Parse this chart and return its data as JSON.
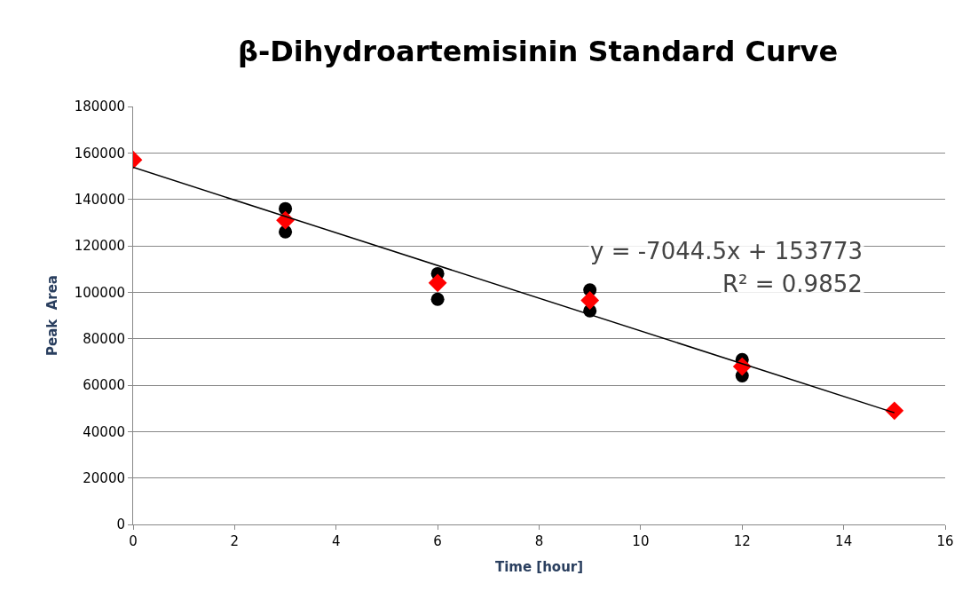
{
  "chart_data": {
    "type": "scatter",
    "title": "β-Dihydroartemisinin Standard Curve",
    "xlabel": "Time [hour]",
    "ylabel": "Peak  Area",
    "xlim": [
      0,
      16
    ],
    "xticks": [
      0,
      2,
      4,
      6,
      8,
      10,
      12,
      14,
      16
    ],
    "ylim": [
      0,
      180000
    ],
    "yticks": [
      0,
      20000,
      40000,
      60000,
      80000,
      100000,
      120000,
      140000,
      160000,
      180000
    ],
    "grid": "y",
    "series": [
      {
        "marker": "circle",
        "color": "#000000",
        "x": [
          3,
          3,
          6,
          6,
          9,
          9,
          12,
          12
        ],
        "values": [
          136000,
          126000,
          108000,
          97000,
          101000,
          92000,
          71000,
          64000
        ]
      },
      {
        "marker": "diamond",
        "color": "#ff0000",
        "x": [
          0,
          3,
          6,
          9,
          12,
          15
        ],
        "values": [
          157000,
          131000,
          104000,
          96500,
          68000,
          49000
        ]
      },
      {
        "type": "line",
        "marker": "none",
        "color": "#000000",
        "x": [
          0,
          15
        ],
        "values": [
          153800,
          48100
        ]
      }
    ],
    "annotations": [
      "y = -7044.5x + 153773",
      "R² = 0.9852"
    ]
  }
}
